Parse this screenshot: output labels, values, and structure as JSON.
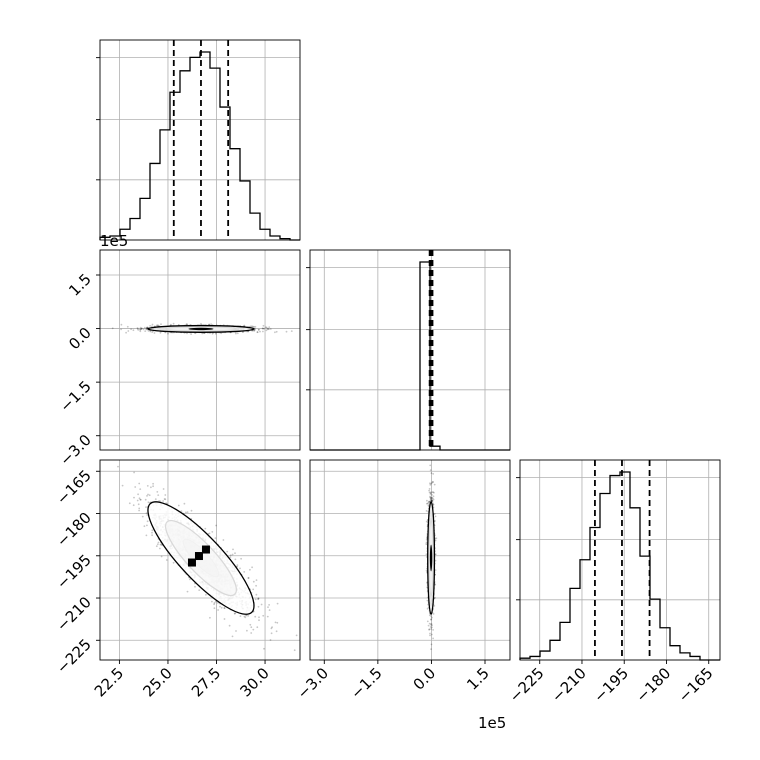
{
  "chart_data": {
    "type": "corner",
    "grid": true,
    "parameters": [
      {
        "index": 0,
        "range": [
          21.5,
          31.8
        ],
        "ticks": [
          "22.5",
          "25.0",
          "27.5",
          "30.0"
        ],
        "tick_values": [
          22.5,
          25.0,
          27.5,
          30.0
        ],
        "offset_label": ""
      },
      {
        "index": 1,
        "range": [
          -3.4,
          2.2
        ],
        "ticks": [
          "−3.0",
          "−1.5",
          "0.0",
          "1.5"
        ],
        "tick_values": [
          -3.0,
          -1.5,
          0.0,
          1.5
        ],
        "offset_label": "1e5"
      },
      {
        "index": 2,
        "range": [
          -232,
          -161
        ],
        "ticks": [
          "−225",
          "−210",
          "−195",
          "−180",
          "−165"
        ],
        "tick_values": [
          -225,
          -210,
          -195,
          -180,
          -165
        ],
        "offset_label": ""
      }
    ],
    "marginals": [
      {
        "param": 0,
        "quantiles": [
          25.3,
          26.7,
          28.1
        ],
        "bin_edges": [
          21.5,
          22.015,
          22.53,
          23.045,
          23.56,
          24.075,
          24.59,
          25.105,
          25.62,
          26.135,
          26.65,
          27.165,
          27.68,
          28.195,
          28.71,
          29.225,
          29.74,
          30.255,
          30.77,
          31.285,
          31.8
        ],
        "counts": [
          2,
          3,
          8,
          16,
          31,
          57,
          82,
          110,
          126,
          136,
          140,
          128,
          99,
          68,
          44,
          20,
          8,
          3,
          1,
          0
        ]
      },
      {
        "param": 1,
        "quantiles": [
          -0.05,
          -0.01,
          0.03
        ],
        "bin_edges": [
          -3.4,
          -3.12,
          -2.84,
          -2.56,
          -2.28,
          -2.0,
          -1.72,
          -1.44,
          -1.16,
          -0.88,
          -0.6,
          -0.32,
          -0.04,
          0.24,
          0.52,
          0.8,
          1.08,
          1.36,
          1.64,
          1.92,
          2.2
        ],
        "counts": [
          0,
          0,
          0,
          0,
          0,
          0,
          0,
          0,
          0,
          0,
          0,
          148,
          3,
          0,
          0,
          0,
          0,
          0,
          0,
          0
        ]
      },
      {
        "param": 2,
        "quantiles": [
          -205.4,
          -195.8,
          -186.0
        ],
        "bin_edges": [
          -232,
          -228.45,
          -224.9,
          -221.35,
          -217.8,
          -214.25,
          -210.7,
          -207.15,
          -203.6,
          -200.05,
          -196.5,
          -192.95,
          -189.4,
          -185.85,
          -182.3,
          -178.75,
          -175.2,
          -171.65,
          -168.1,
          -164.55,
          -161
        ],
        "counts": [
          1,
          2,
          5,
          11,
          21,
          40,
          56,
          74,
          93,
          103,
          105,
          85,
          58,
          34,
          18,
          8,
          4,
          2,
          0,
          0
        ]
      }
    ],
    "joints": [
      {
        "x_param": 0,
        "y_param": 1,
        "center": [
          26.7,
          -0.01
        ],
        "sd_x": 1.3,
        "sd_y": 0.045,
        "corr": 0.0
      },
      {
        "x_param": 0,
        "y_param": 2,
        "center": [
          26.7,
          -195.8
        ],
        "sd_x": 1.3,
        "sd_y": 9.5,
        "corr": -0.85
      },
      {
        "x_param": 1,
        "y_param": 2,
        "center": [
          -0.01,
          -195.8
        ],
        "sd_x": 0.045,
        "sd_y": 9.5,
        "corr": 0.0
      }
    ]
  }
}
